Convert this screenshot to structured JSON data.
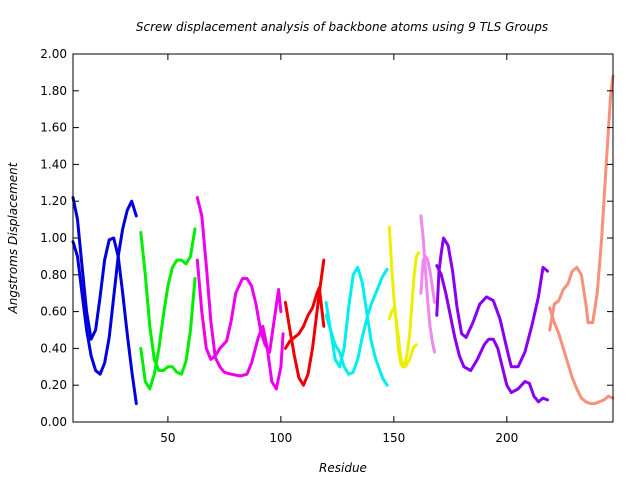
{
  "chart_data": {
    "type": "line",
    "title": "Screw displacement analysis of backbone atoms using 9 TLS Groups",
    "xlabel": "Residue",
    "ylabel": "Angstroms Displacement",
    "xlim": [
      8,
      247
    ],
    "ylim": [
      0.0,
      2.0
    ],
    "yticks": [
      "0.00",
      "0.20",
      "0.40",
      "0.60",
      "0.80",
      "1.00",
      "1.20",
      "1.40",
      "1.60",
      "1.80",
      "2.00"
    ],
    "xticks": [
      "50",
      "100",
      "150",
      "200"
    ],
    "xtick_values": [
      50,
      100,
      150,
      200
    ],
    "ytick_values": [
      0,
      0.2,
      0.4,
      0.6,
      0.8,
      1.0,
      1.2,
      1.4,
      1.6,
      1.8,
      2.0
    ],
    "grid": false,
    "legend": "none",
    "series": [
      {
        "color": "#0000dd",
        "lines": [
          [
            [
              8,
              0.98
            ],
            [
              10,
              0.9
            ],
            [
              12,
              0.7
            ],
            [
              14,
              0.5
            ],
            [
              16,
              0.36
            ],
            [
              18,
              0.28
            ],
            [
              20,
              0.26
            ],
            [
              22,
              0.32
            ],
            [
              24,
              0.46
            ],
            [
              26,
              0.68
            ],
            [
              28,
              0.9
            ],
            [
              30,
              1.05
            ],
            [
              32,
              1.15
            ],
            [
              34,
              1.2
            ],
            [
              36,
              1.12
            ]
          ],
          [
            [
              8,
              1.22
            ],
            [
              10,
              1.1
            ],
            [
              12,
              0.85
            ],
            [
              14,
              0.6
            ],
            [
              16,
              0.45
            ],
            [
              18,
              0.5
            ],
            [
              20,
              0.68
            ],
            [
              22,
              0.88
            ],
            [
              24,
              0.99
            ],
            [
              26,
              1.0
            ],
            [
              28,
              0.9
            ],
            [
              30,
              0.7
            ],
            [
              32,
              0.48
            ],
            [
              34,
              0.28
            ],
            [
              36,
              0.1
            ]
          ]
        ]
      },
      {
        "color": "#00ee00",
        "lines": [
          [
            [
              38,
              1.03
            ],
            [
              40,
              0.8
            ],
            [
              42,
              0.52
            ],
            [
              44,
              0.34
            ],
            [
              46,
              0.28
            ],
            [
              48,
              0.28
            ],
            [
              50,
              0.3
            ],
            [
              52,
              0.3
            ],
            [
              54,
              0.27
            ],
            [
              56,
              0.26
            ],
            [
              58,
              0.33
            ],
            [
              60,
              0.5
            ],
            [
              62,
              0.78
            ]
          ],
          [
            [
              38,
              0.4
            ],
            [
              40,
              0.22
            ],
            [
              42,
              0.18
            ],
            [
              44,
              0.26
            ],
            [
              46,
              0.4
            ],
            [
              48,
              0.58
            ],
            [
              50,
              0.74
            ],
            [
              52,
              0.84
            ],
            [
              54,
              0.88
            ],
            [
              56,
              0.88
            ],
            [
              58,
              0.86
            ],
            [
              60,
              0.9
            ],
            [
              62,
              1.05
            ]
          ]
        ]
      },
      {
        "color": "#ee00ee",
        "lines": [
          [
            [
              63,
              1.22
            ],
            [
              65,
              1.12
            ],
            [
              67,
              0.85
            ],
            [
              69,
              0.55
            ],
            [
              71,
              0.35
            ],
            [
              73,
              0.3
            ],
            [
              75,
              0.27
            ],
            [
              78,
              0.26
            ],
            [
              82,
              0.25
            ],
            [
              85,
              0.26
            ],
            [
              87,
              0.32
            ],
            [
              90,
              0.46
            ],
            [
              92,
              0.52
            ],
            [
              94,
              0.4
            ],
            [
              96,
              0.22
            ],
            [
              98,
              0.18
            ],
            [
              100,
              0.3
            ],
            [
              101,
              0.48
            ]
          ],
          [
            [
              63,
              0.88
            ],
            [
              65,
              0.6
            ],
            [
              67,
              0.4
            ],
            [
              69,
              0.34
            ],
            [
              71,
              0.36
            ],
            [
              73,
              0.4
            ],
            [
              76,
              0.44
            ],
            [
              78,
              0.55
            ],
            [
              80,
              0.7
            ],
            [
              83,
              0.78
            ],
            [
              85,
              0.78
            ],
            [
              87,
              0.74
            ],
            [
              89,
              0.64
            ],
            [
              91,
              0.5
            ],
            [
              93,
              0.42
            ],
            [
              95,
              0.38
            ],
            [
              97,
              0.55
            ],
            [
              99,
              0.72
            ],
            [
              100,
              0.6
            ]
          ]
        ]
      },
      {
        "color": "#ee0000",
        "lines": [
          [
            [
              102,
              0.65
            ],
            [
              104,
              0.5
            ],
            [
              106,
              0.36
            ],
            [
              108,
              0.24
            ],
            [
              110,
              0.2
            ],
            [
              112,
              0.26
            ],
            [
              114,
              0.4
            ],
            [
              116,
              0.6
            ],
            [
              117,
              0.7
            ],
            [
              119,
              0.88
            ]
          ],
          [
            [
              102,
              0.4
            ],
            [
              104,
              0.44
            ],
            [
              106,
              0.46
            ],
            [
              108,
              0.48
            ],
            [
              110,
              0.52
            ],
            [
              112,
              0.58
            ],
            [
              114,
              0.62
            ],
            [
              116,
              0.7
            ],
            [
              117,
              0.73
            ],
            [
              119,
              0.52
            ]
          ]
        ]
      },
      {
        "color": "#00eeee",
        "lines": [
          [
            [
              120,
              0.65
            ],
            [
              122,
              0.5
            ],
            [
              124,
              0.34
            ],
            [
              126,
              0.3
            ],
            [
              128,
              0.4
            ],
            [
              130,
              0.62
            ],
            [
              132,
              0.8
            ],
            [
              134,
              0.84
            ],
            [
              136,
              0.76
            ],
            [
              138,
              0.6
            ],
            [
              140,
              0.44
            ],
            [
              142,
              0.34
            ],
            [
              145,
              0.24
            ],
            [
              147,
              0.2
            ]
          ],
          [
            [
              120,
              0.58
            ],
            [
              122,
              0.5
            ],
            [
              124,
              0.42
            ],
            [
              126,
              0.38
            ],
            [
              128,
              0.3
            ],
            [
              130,
              0.26
            ],
            [
              132,
              0.27
            ],
            [
              134,
              0.34
            ],
            [
              136,
              0.46
            ],
            [
              138,
              0.56
            ],
            [
              140,
              0.64
            ],
            [
              142,
              0.7
            ],
            [
              145,
              0.79
            ],
            [
              147,
              0.83
            ]
          ]
        ]
      },
      {
        "color": "#eeee00",
        "lines": [
          [
            [
              148,
              1.06
            ],
            [
              149,
              0.85
            ],
            [
              150,
              0.68
            ],
            [
              151,
              0.55
            ],
            [
              152,
              0.4
            ],
            [
              153,
              0.32
            ],
            [
              154,
              0.3
            ],
            [
              155,
              0.32
            ],
            [
              156,
              0.38
            ],
            [
              157,
              0.48
            ],
            [
              158,
              0.64
            ],
            [
              159,
              0.8
            ],
            [
              160,
              0.9
            ],
            [
              161,
              0.92
            ]
          ],
          [
            [
              148,
              0.56
            ],
            [
              149,
              0.6
            ],
            [
              150,
              0.62
            ],
            [
              151,
              0.56
            ],
            [
              152,
              0.46
            ],
            [
              153,
              0.36
            ],
            [
              154,
              0.3
            ],
            [
              155,
              0.3
            ],
            [
              156,
              0.32
            ],
            [
              157,
              0.34
            ],
            [
              158,
              0.38
            ],
            [
              159,
              0.41
            ],
            [
              160,
              0.42
            ]
          ]
        ]
      },
      {
        "color": "#ee88ee",
        "lines": [
          [
            [
              162,
              1.12
            ],
            [
              163,
              1.0
            ],
            [
              164,
              0.82
            ],
            [
              165,
              0.66
            ],
            [
              166,
              0.52
            ],
            [
              167,
              0.44
            ],
            [
              168,
              0.38
            ]
          ],
          [
            [
              162,
              0.7
            ],
            [
              163,
              0.88
            ],
            [
              164,
              0.9
            ],
            [
              165,
              0.88
            ],
            [
              166,
              0.82
            ],
            [
              167,
              0.74
            ],
            [
              168,
              0.65
            ]
          ]
        ]
      },
      {
        "color": "#8800ee",
        "lines": [
          [
            [
              169,
              0.58
            ],
            [
              170,
              0.82
            ],
            [
              171,
              0.92
            ],
            [
              172,
              1.0
            ],
            [
              174,
              0.96
            ],
            [
              176,
              0.82
            ],
            [
              178,
              0.62
            ],
            [
              180,
              0.48
            ],
            [
              182,
              0.46
            ],
            [
              185,
              0.54
            ],
            [
              188,
              0.64
            ],
            [
              191,
              0.68
            ],
            [
              194,
              0.66
            ],
            [
              197,
              0.56
            ],
            [
              200,
              0.4
            ],
            [
              202,
              0.3
            ],
            [
              205,
              0.3
            ],
            [
              208,
              0.38
            ],
            [
              211,
              0.52
            ],
            [
              214,
              0.68
            ],
            [
              216,
              0.84
            ],
            [
              218,
              0.82
            ]
          ],
          [
            [
              169,
              0.85
            ],
            [
              171,
              0.8
            ],
            [
              173,
              0.7
            ],
            [
              175,
              0.58
            ],
            [
              177,
              0.46
            ],
            [
              179,
              0.36
            ],
            [
              181,
              0.3
            ],
            [
              184,
              0.28
            ],
            [
              187,
              0.34
            ],
            [
              190,
              0.42
            ],
            [
              192,
              0.45
            ],
            [
              194,
              0.45
            ],
            [
              196,
              0.4
            ],
            [
              198,
              0.3
            ],
            [
              200,
              0.2
            ],
            [
              202,
              0.16
            ],
            [
              205,
              0.18
            ],
            [
              208,
              0.22
            ],
            [
              210,
              0.21
            ],
            [
              212,
              0.14
            ],
            [
              214,
              0.11
            ],
            [
              216,
              0.13
            ],
            [
              218,
              0.12
            ]
          ]
        ]
      },
      {
        "color": "#f8907a",
        "lines": [
          [
            [
              219,
              0.5
            ],
            [
              221,
              0.64
            ],
            [
              223,
              0.66
            ],
            [
              225,
              0.72
            ],
            [
              227,
              0.75
            ],
            [
              229,
              0.82
            ],
            [
              231,
              0.84
            ],
            [
              233,
              0.8
            ],
            [
              235,
              0.64
            ],
            [
              236,
              0.54
            ],
            [
              238,
              0.54
            ],
            [
              240,
              0.7
            ],
            [
              242,
              1.0
            ],
            [
              244,
              1.4
            ],
            [
              246,
              1.78
            ],
            [
              247,
              1.88
            ]
          ],
          [
            [
              219,
              0.62
            ],
            [
              221,
              0.54
            ],
            [
              223,
              0.48
            ],
            [
              225,
              0.4
            ],
            [
              227,
              0.32
            ],
            [
              229,
              0.24
            ],
            [
              231,
              0.18
            ],
            [
              233,
              0.13
            ],
            [
              235,
              0.11
            ],
            [
              237,
              0.1
            ],
            [
              239,
              0.1
            ],
            [
              241,
              0.11
            ],
            [
              243,
              0.12
            ],
            [
              245,
              0.14
            ],
            [
              247,
              0.13
            ]
          ]
        ]
      }
    ]
  }
}
